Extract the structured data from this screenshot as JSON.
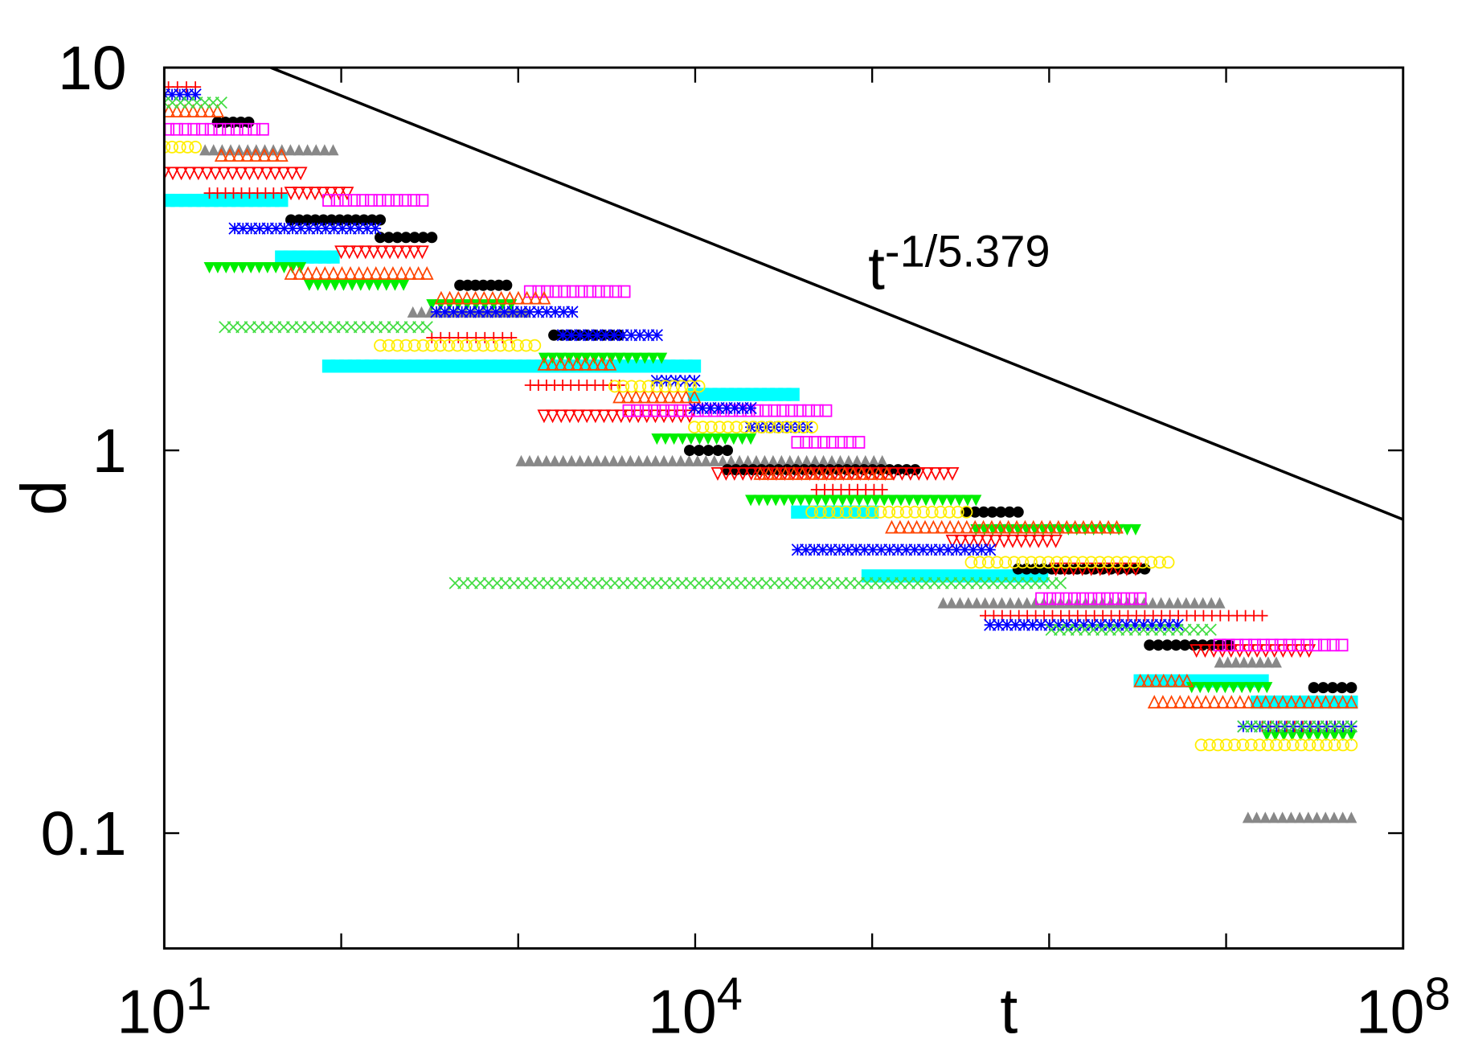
{
  "chart_data": {
    "type": "segments",
    "xlabel": "t",
    "ylabel": "d",
    "xscale": "log",
    "yscale": "log",
    "xlim": [
      10,
      100000000
    ],
    "ylim": [
      0.05,
      10
    ],
    "xticks": [
      {
        "value": 10,
        "label": "10^1"
      },
      {
        "value": 10000,
        "label": "10^4"
      },
      {
        "value": 100000000,
        "label": "10^8"
      }
    ],
    "xminorticks": [
      100,
      1000,
      100000,
      1000000,
      10000000
    ],
    "yticks": [
      0.1,
      1,
      10
    ],
    "reference_line": {
      "label": "t^-1/5.379",
      "color": "#000000",
      "x": [
        40,
        100000000
      ],
      "values": [
        10,
        0.66
      ]
    },
    "series": [
      {
        "color": "#00ffff",
        "marker": "square-filled",
        "segments": [
          [
            9.4,
            46,
            4.5
          ],
          [
            46,
            90,
            3.2
          ],
          [
            85,
            9900,
            1.66
          ],
          [
            9900,
            35700,
            1.4
          ],
          [
            37900,
            100000,
            0.69
          ],
          [
            94800,
            907000,
            0.47
          ],
          [
            3270000,
            16000000,
            0.25
          ],
          [
            15000000,
            51000000,
            0.22
          ]
        ]
      },
      {
        "color": "#888888",
        "marker": "triangle-up-filled",
        "segments": [
          [
            17,
            90,
            6.1
          ],
          [
            1040,
            114000,
            0.94
          ],
          [
            252000,
            9200000,
            0.4
          ],
          [
            9200000,
            19200000,
            0.28
          ],
          [
            13300000,
            51000000,
            0.11
          ],
          [
            254,
            1100,
            2.3
          ]
        ]
      },
      {
        "color": "#000000",
        "marker": "circle-filled",
        "segments": [
          [
            20,
            30,
            7.2
          ],
          [
            52,
            166,
            4.0
          ],
          [
            166,
            325,
            3.6
          ],
          [
            468,
            860,
            2.7
          ],
          [
            1590,
            3730,
            2.0
          ],
          [
            9300,
            15200,
            1.0
          ],
          [
            15200,
            175000,
            0.89
          ],
          [
            341000,
            668000,
            0.69
          ],
          [
            668000,
            3470000,
            0.49
          ],
          [
            3690000,
            10400000,
            0.31
          ],
          [
            31300000,
            51000000,
            0.24
          ]
        ]
      },
      {
        "color": "#00ee00",
        "marker": "triangle-down-filled",
        "segments": [
          [
            18,
            59,
            3.0
          ],
          [
            66,
            225,
            2.7
          ],
          [
            325,
            915,
            2.4
          ],
          [
            1400,
            6460,
            1.74
          ],
          [
            6080,
            20600,
            1.07
          ],
          [
            20600,
            386000,
            0.74
          ],
          [
            386000,
            3080000,
            0.62
          ],
          [
            6390000,
            17000000,
            0.24
          ],
          [
            17000000,
            51000000,
            0.18
          ]
        ]
      },
      {
        "color": "#ff0000",
        "marker": "triangle-down-open",
        "segments": [
          [
            10,
            59,
            5.3
          ],
          [
            100,
            287,
            3.3
          ],
          [
            52,
            108,
            4.7
          ],
          [
            1400,
            9300,
            1.23
          ],
          [
            13400,
            284000,
            0.87
          ],
          [
            284000,
            1090000,
            0.58
          ],
          [
            1090000,
            3080000,
            0.49
          ],
          [
            6800000,
            29400000,
            0.3
          ]
        ]
      },
      {
        "color": "#ff0000",
        "marker": "plus",
        "segments": [
          [
            9.4,
            15,
            8.9
          ],
          [
            18,
            46,
            4.7
          ],
          [
            325,
            915,
            1.97
          ],
          [
            1170,
            3730,
            1.48
          ],
          [
            48400,
            114000,
            0.79
          ],
          [
            436000,
            16000000,
            0.37
          ],
          [
            16000000,
            51000000,
            0.19
          ]
        ]
      },
      {
        "color": "#ff00ff",
        "marker": "square-open",
        "segments": [
          [
            9.4,
            36,
            6.9
          ],
          [
            85,
            287,
            4.5
          ],
          [
            1170,
            3970,
            2.6
          ],
          [
            4220,
            54700,
            1.27
          ],
          [
            37900,
            84000,
            1.05
          ],
          [
            907000,
            3270000,
            0.41
          ],
          [
            9200000,
            45100000,
            0.31
          ]
        ]
      },
      {
        "color": "#0000ff",
        "marker": "star",
        "segments": [
          [
            10,
            15,
            8.5
          ],
          [
            25,
            156,
            3.8
          ],
          [
            345,
            2020,
            2.3
          ],
          [
            1790,
            6080,
            2.0
          ],
          [
            6080,
            9900,
            1.52
          ],
          [
            9900,
            20600,
            1.29
          ],
          [
            20600,
            42900,
            1.15
          ],
          [
            37900,
            463000,
            0.55
          ],
          [
            463000,
            5320000,
            0.35
          ],
          [
            12500000,
            51000000,
            0.19
          ]
        ]
      },
      {
        "color": "#ff4500",
        "marker": "triangle-up-open",
        "segments": [
          [
            10.6,
            20,
            7.7
          ],
          [
            21,
            46,
            5.9
          ],
          [
            52,
            305,
            2.9
          ],
          [
            367,
            1400,
            2.5
          ],
          [
            1400,
            3300,
            1.68
          ],
          [
            3730,
            9900,
            1.38
          ],
          [
            23300,
            121000,
            0.87
          ],
          [
            129000,
            2410000,
            0.63
          ],
          [
            3270000,
            6010000,
            0.25
          ],
          [
            3930000,
            51000000,
            0.22
          ]
        ]
      },
      {
        "color": "#ffee00",
        "marker": "circle-open",
        "segments": [
          [
            10,
            15,
            6.2
          ],
          [
            166,
            1240,
            1.88
          ],
          [
            3510,
            10500,
            1.47
          ],
          [
            9900,
            45600,
            1.15
          ],
          [
            45600,
            341000,
            0.69
          ],
          [
            363000,
            4710000,
            0.51
          ],
          [
            7230000,
            51000000,
            0.17
          ]
        ]
      },
      {
        "color": "#44dd44",
        "marker": "cross",
        "segments": [
          [
            10,
            21,
            8.1
          ],
          [
            22,
            305,
            2.1
          ],
          [
            440,
            1160000,
            0.45
          ],
          [
            1030000,
            8170000,
            0.34
          ],
          [
            12500000,
            51000000,
            0.19
          ]
        ]
      }
    ]
  }
}
